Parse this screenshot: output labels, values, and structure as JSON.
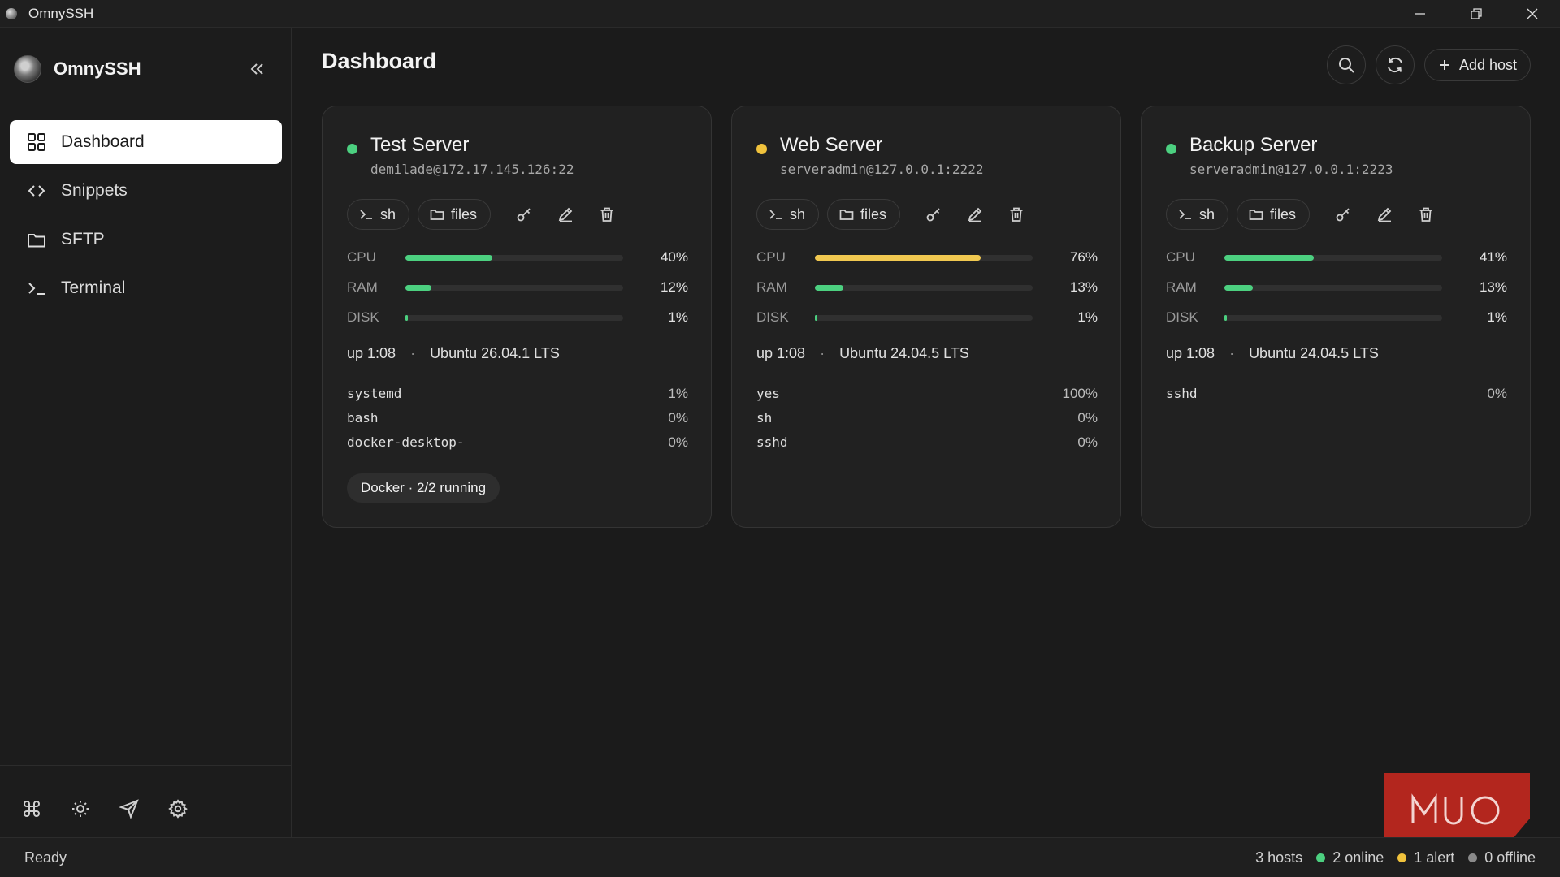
{
  "window": {
    "title": "OmnySSH"
  },
  "sidebar": {
    "brand": "OmnySSH",
    "items": [
      {
        "label": "Dashboard",
        "icon": "grid-icon",
        "active": true
      },
      {
        "label": "Snippets",
        "icon": "code-icon",
        "active": false
      },
      {
        "label": "SFTP",
        "icon": "folder-icon",
        "active": false
      },
      {
        "label": "Terminal",
        "icon": "terminal-icon",
        "active": false
      }
    ],
    "tools": [
      "command-icon",
      "sun-icon",
      "send-icon",
      "gear-icon"
    ]
  },
  "header": {
    "title": "Dashboard",
    "add_host_label": "Add host"
  },
  "hosts": [
    {
      "name": "Test Server",
      "address": "demilade@172.17.145.126:22",
      "status_color": "#4cd080",
      "actions": {
        "sh": "sh",
        "files": "files"
      },
      "metrics": [
        {
          "label": "CPU",
          "value": "40%",
          "fraction": 0.4,
          "color": "#4cd080"
        },
        {
          "label": "RAM",
          "value": "12%",
          "fraction": 0.12,
          "color": "#4cd080"
        },
        {
          "label": "DISK",
          "value": "1%",
          "fraction": 0.01,
          "color": "#4cd080"
        }
      ],
      "uptime": "up 1:08",
      "os": "Ubuntu 26.04.1 LTS",
      "processes": [
        {
          "name": "systemd",
          "value": "1%"
        },
        {
          "name": "bash",
          "value": "0%"
        },
        {
          "name": "docker-desktop-",
          "value": "0%"
        }
      ],
      "docker": "Docker · 2/2 running"
    },
    {
      "name": "Web Server",
      "address": "serveradmin@127.0.0.1:2222",
      "status_color": "#f0c23c",
      "actions": {
        "sh": "sh",
        "files": "files"
      },
      "metrics": [
        {
          "label": "CPU",
          "value": "76%",
          "fraction": 0.76,
          "color": "#f0c850"
        },
        {
          "label": "RAM",
          "value": "13%",
          "fraction": 0.13,
          "color": "#4cd080"
        },
        {
          "label": "DISK",
          "value": "1%",
          "fraction": 0.01,
          "color": "#4cd080"
        }
      ],
      "uptime": "up 1:08",
      "os": "Ubuntu 24.04.5 LTS",
      "processes": [
        {
          "name": "yes",
          "value": "100%"
        },
        {
          "name": "sh",
          "value": "0%"
        },
        {
          "name": "sshd",
          "value": "0%"
        }
      ],
      "docker": null
    },
    {
      "name": "Backup Server",
      "address": "serveradmin@127.0.0.1:2223",
      "status_color": "#4cd080",
      "actions": {
        "sh": "sh",
        "files": "files"
      },
      "metrics": [
        {
          "label": "CPU",
          "value": "41%",
          "fraction": 0.41,
          "color": "#4cd080"
        },
        {
          "label": "RAM",
          "value": "13%",
          "fraction": 0.13,
          "color": "#4cd080"
        },
        {
          "label": "DISK",
          "value": "1%",
          "fraction": 0.01,
          "color": "#4cd080"
        }
      ],
      "uptime": "up 1:08",
      "os": "Ubuntu 24.04.5 LTS",
      "processes": [
        {
          "name": "sshd",
          "value": "0%"
        }
      ],
      "docker": null
    }
  ],
  "statusbar": {
    "ready": "Ready",
    "hosts": "3 hosts",
    "online": "2 online",
    "alert": "1 alert",
    "offline": "0 offline",
    "online_color": "#4cd080",
    "alert_color": "#f0c23c",
    "offline_color": "#8a8a8a"
  },
  "watermark": "MUO"
}
